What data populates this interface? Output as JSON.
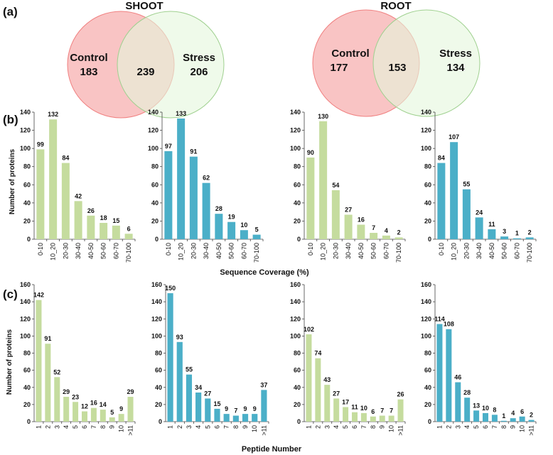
{
  "panels": {
    "a": "(a)",
    "b": "(b)",
    "c": "(c)"
  },
  "venn": [
    {
      "title": "SHOOT",
      "left": {
        "label": "Control",
        "value": "183",
        "color": "#f9c4c4",
        "stroke": "#f08080"
      },
      "right": {
        "label": "Stress",
        "value": "206",
        "color": "#e4f7dc",
        "stroke": "#9fd08f"
      },
      "overlap": "239"
    },
    {
      "title": "ROOT",
      "left": {
        "label": "Control",
        "value": "177",
        "color": "#f9c4c4",
        "stroke": "#f08080"
      },
      "right": {
        "label": "Stress",
        "value": "134",
        "color": "#e4f7dc",
        "stroke": "#9fd08f"
      },
      "overlap": "153"
    }
  ],
  "axes": {
    "b_ylabel": "Number of proteins",
    "b_xlabel": "Sequence Coverage (%)",
    "c_ylabel": "Number of proteins",
    "c_xlabel": "Peptide Number"
  },
  "chart_data": [
    {
      "type": "bar",
      "row": "b",
      "color": "#c5dc9e",
      "categories": [
        "0-10",
        "10_20",
        "20-30",
        "30-40",
        "40-50",
        "50-60",
        "60-70",
        "70-100"
      ],
      "values": [
        99,
        132,
        84,
        42,
        26,
        18,
        15,
        6
      ],
      "ylim": [
        0,
        140
      ],
      "yticks": [
        "0",
        "20",
        "40",
        "60",
        "80",
        "100",
        "120",
        "140"
      ]
    },
    {
      "type": "bar",
      "row": "b",
      "color": "#4bafc8",
      "categories": [
        "0-10",
        "10_20",
        "20-30",
        "30-40",
        "40-50",
        "50-60",
        "60-70",
        "70-100"
      ],
      "values": [
        97,
        133,
        91,
        62,
        28,
        19,
        10,
        5
      ],
      "ylim": [
        0,
        140
      ],
      "yticks": [
        "0",
        "20",
        "40",
        "60",
        "80",
        "100",
        "120",
        "140"
      ]
    },
    {
      "type": "bar",
      "row": "b",
      "color": "#c5dc9e",
      "categories": [
        "0-10",
        "10_20",
        "20-30",
        "30-40",
        "40-50",
        "50-60",
        "60-70",
        "70-100"
      ],
      "values": [
        90,
        130,
        54,
        27,
        16,
        7,
        4,
        2
      ],
      "ylim": [
        0,
        140
      ],
      "yticks": [
        "0",
        "20",
        "40",
        "60",
        "80",
        "100",
        "120",
        "140"
      ]
    },
    {
      "type": "bar",
      "row": "b",
      "color": "#4bafc8",
      "categories": [
        "0-10",
        "10_20",
        "20-30",
        "30-40",
        "40-50",
        "50-60",
        "60-70",
        "70-100"
      ],
      "values": [
        84,
        107,
        55,
        24,
        11,
        3,
        1,
        2
      ],
      "ylim": [
        0,
        140
      ],
      "yticks": [
        "0",
        "20",
        "40",
        "60",
        "80",
        "100",
        "120",
        "140"
      ]
    },
    {
      "type": "bar",
      "row": "c",
      "color": "#c5dc9e",
      "categories": [
        "1",
        "2",
        "3",
        "4",
        "5",
        "6",
        "7",
        "8",
        "9",
        "10",
        ">11"
      ],
      "values": [
        142,
        91,
        52,
        29,
        23,
        12,
        16,
        14,
        5,
        9,
        29
      ],
      "ylim": [
        0,
        160
      ],
      "yticks": [
        "0",
        "20",
        "40",
        "60",
        "80",
        "100",
        "120",
        "140",
        "160"
      ]
    },
    {
      "type": "bar",
      "row": "c",
      "color": "#4bafc8",
      "categories": [
        "1",
        "2",
        "3",
        "4",
        "5",
        "6",
        "7",
        "8",
        "9",
        "10",
        ">11"
      ],
      "values": [
        150,
        93,
        55,
        34,
        27,
        15,
        9,
        7,
        9,
        9,
        37
      ],
      "ylim": [
        0,
        160
      ],
      "yticks": [
        "0",
        "20",
        "40",
        "60",
        "80",
        "100",
        "120",
        "140",
        "160"
      ]
    },
    {
      "type": "bar",
      "row": "c",
      "color": "#c5dc9e",
      "categories": [
        "1",
        "2",
        "3",
        "4",
        "5",
        "6",
        "7",
        "8",
        "9",
        "10",
        ">11"
      ],
      "values": [
        102,
        74,
        43,
        27,
        17,
        11,
        10,
        6,
        7,
        7,
        26
      ],
      "ylim": [
        0,
        160
      ],
      "yticks": [
        "0",
        "20",
        "40",
        "60",
        "80",
        "100",
        "120",
        "140",
        "160"
      ]
    },
    {
      "type": "bar",
      "row": "c",
      "color": "#4bafc8",
      "categories": [
        "1",
        "2",
        "3",
        "4",
        "5",
        "6",
        "7",
        "8",
        "9",
        "10",
        ">11"
      ],
      "values": [
        114,
        108,
        46,
        28,
        13,
        10,
        8,
        1,
        4,
        6,
        2
      ],
      "ylim": [
        0,
        160
      ],
      "yticks": [
        "0",
        "20",
        "40",
        "60",
        "80",
        "100",
        "120",
        "140",
        "160"
      ]
    }
  ]
}
